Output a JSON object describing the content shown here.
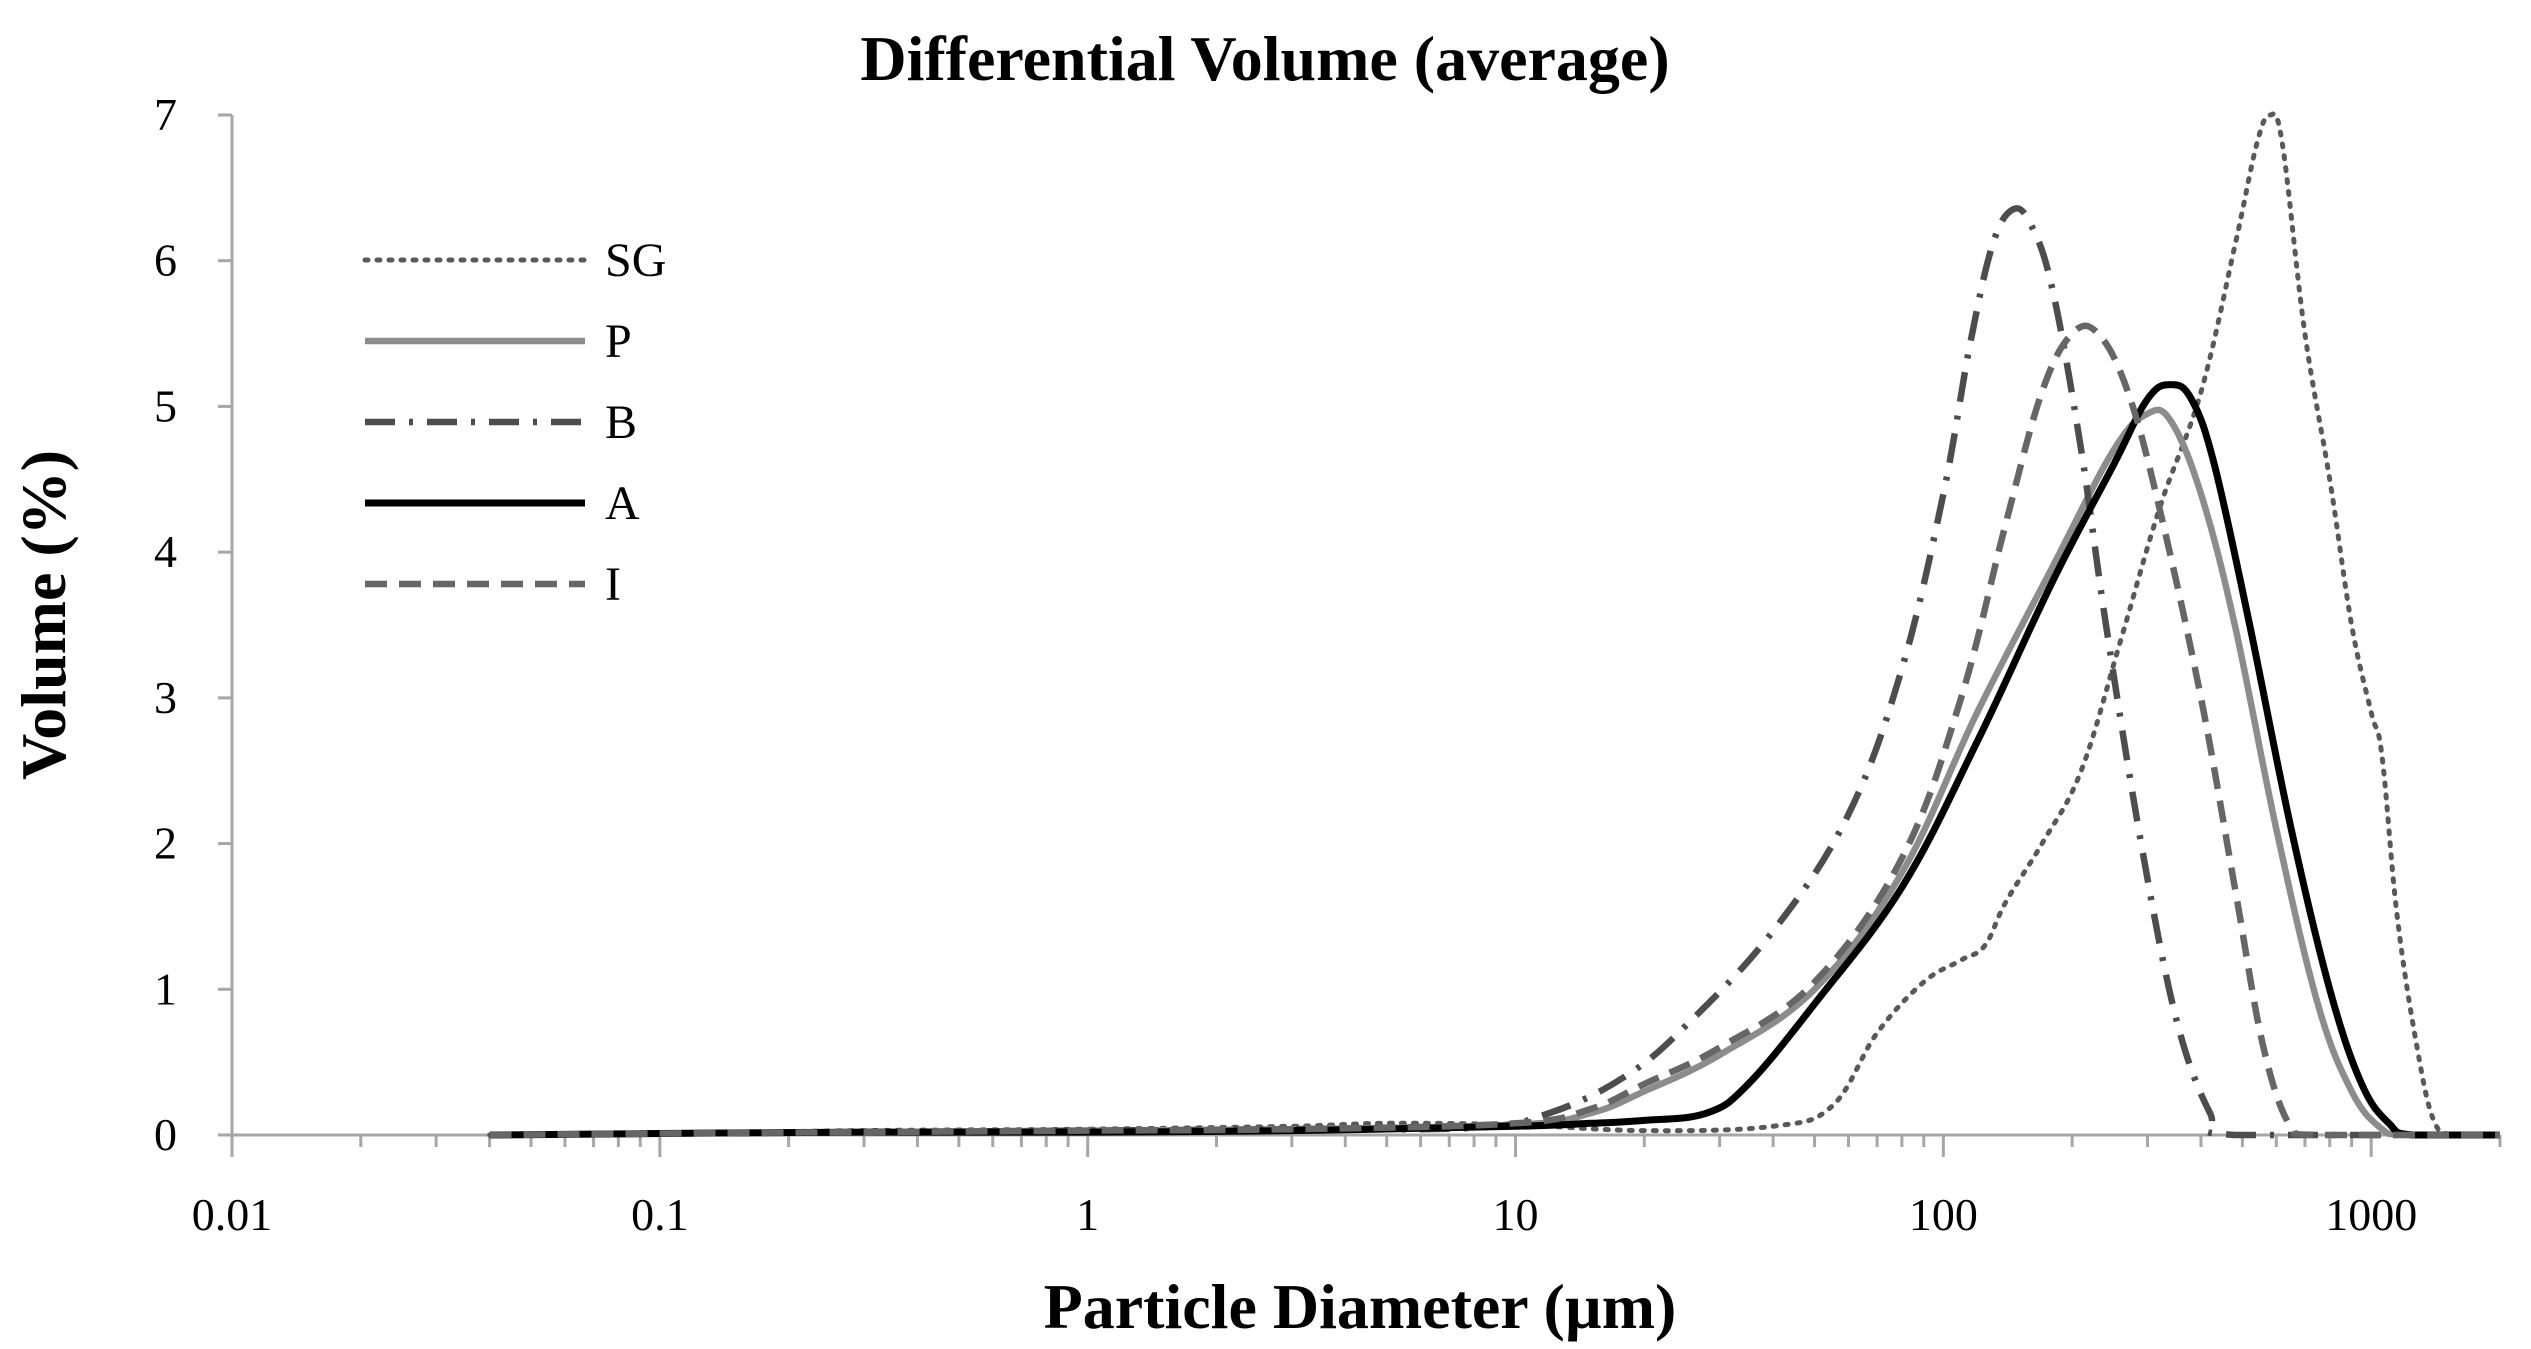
{
  "chart_data": {
    "type": "line",
    "title": "Differential Volume (average)",
    "xlabel": "Particle Diameter (µm)",
    "ylabel": "Volume (%)",
    "xscale": "log",
    "xlim": [
      0.01,
      2000
    ],
    "ylim": [
      0,
      7
    ],
    "x_ticks": [
      0.01,
      0.1,
      1,
      10,
      100,
      1000
    ],
    "x_tick_labels": [
      "0.01",
      "0.1",
      "1",
      "10",
      "100",
      "1000"
    ],
    "y_ticks": [
      0,
      1,
      2,
      3,
      4,
      5,
      6,
      7
    ],
    "y_tick_labels": [
      "0",
      "1",
      "2",
      "3",
      "4",
      "5",
      "6",
      "7"
    ],
    "legend_position": "top-left",
    "series": [
      {
        "name": "SG",
        "color": "#595959",
        "style": "dotted",
        "points": [
          [
            0.04,
            0
          ],
          [
            0.1,
            0.01
          ],
          [
            0.3,
            0.03
          ],
          [
            1,
            0.04
          ],
          [
            3,
            0.06
          ],
          [
            5,
            0.08
          ],
          [
            10,
            0.07
          ],
          [
            20,
            0.03
          ],
          [
            40,
            0.06
          ],
          [
            55,
            0.2
          ],
          [
            70,
            0.7
          ],
          [
            90,
            1.05
          ],
          [
            110,
            1.2
          ],
          [
            125,
            1.3
          ],
          [
            140,
            1.6
          ],
          [
            170,
            2.0
          ],
          [
            210,
            2.5
          ],
          [
            260,
            3.4
          ],
          [
            320,
            4.3
          ],
          [
            400,
            5.1
          ],
          [
            480,
            6.1
          ],
          [
            540,
            6.8
          ],
          [
            580,
            7.0
          ],
          [
            620,
            6.8
          ],
          [
            700,
            5.5
          ],
          [
            800,
            4.5
          ],
          [
            900,
            3.5
          ],
          [
            1000,
            2.9
          ],
          [
            1060,
            2.6
          ],
          [
            1150,
            1.5
          ],
          [
            1280,
            0.6
          ],
          [
            1400,
            0.1
          ],
          [
            1550,
            0
          ],
          [
            2000,
            0
          ]
        ]
      },
      {
        "name": "P",
        "color": "#8c8c8c",
        "style": "solid",
        "points": [
          [
            0.04,
            0
          ],
          [
            0.1,
            0.01
          ],
          [
            0.3,
            0.02
          ],
          [
            1,
            0.03
          ],
          [
            3,
            0.04
          ],
          [
            10,
            0.07
          ],
          [
            15,
            0.15
          ],
          [
            20,
            0.3
          ],
          [
            30,
            0.55
          ],
          [
            50,
            1.0
          ],
          [
            80,
            1.8
          ],
          [
            120,
            2.9
          ],
          [
            180,
            3.9
          ],
          [
            250,
            4.7
          ],
          [
            300,
            4.95
          ],
          [
            340,
            4.9
          ],
          [
            400,
            4.4
          ],
          [
            480,
            3.5
          ],
          [
            600,
            2.1
          ],
          [
            750,
            0.9
          ],
          [
            900,
            0.3
          ],
          [
            1050,
            0.05
          ],
          [
            1200,
            0
          ],
          [
            2000,
            0
          ]
        ]
      },
      {
        "name": "B",
        "color": "#4d4d4d",
        "style": "dashdot",
        "points": [
          [
            0.04,
            0
          ],
          [
            0.1,
            0.01
          ],
          [
            0.3,
            0.02
          ],
          [
            1,
            0.03
          ],
          [
            3,
            0.04
          ],
          [
            8,
            0.05
          ],
          [
            12,
            0.15
          ],
          [
            18,
            0.4
          ],
          [
            25,
            0.75
          ],
          [
            40,
            1.4
          ],
          [
            60,
            2.2
          ],
          [
            80,
            3.2
          ],
          [
            100,
            4.4
          ],
          [
            115,
            5.4
          ],
          [
            130,
            6.1
          ],
          [
            145,
            6.35
          ],
          [
            160,
            6.25
          ],
          [
            180,
            5.8
          ],
          [
            210,
            4.7
          ],
          [
            240,
            3.5
          ],
          [
            290,
            2.0
          ],
          [
            350,
            0.8
          ],
          [
            420,
            0.15
          ],
          [
            480,
            0
          ],
          [
            2000,
            0
          ]
        ]
      },
      {
        "name": "A",
        "color": "#000000",
        "style": "solid",
        "points": [
          [
            0.04,
            0
          ],
          [
            0.1,
            0.01
          ],
          [
            0.3,
            0.02
          ],
          [
            1,
            0.02
          ],
          [
            3,
            0.03
          ],
          [
            10,
            0.06
          ],
          [
            15,
            0.08
          ],
          [
            20,
            0.1
          ],
          [
            28,
            0.15
          ],
          [
            35,
            0.35
          ],
          [
            50,
            0.9
          ],
          [
            80,
            1.7
          ],
          [
            120,
            2.7
          ],
          [
            180,
            3.8
          ],
          [
            250,
            4.6
          ],
          [
            300,
            5.05
          ],
          [
            340,
            5.15
          ],
          [
            380,
            5.05
          ],
          [
            430,
            4.6
          ],
          [
            520,
            3.5
          ],
          [
            650,
            2.1
          ],
          [
            800,
            1.0
          ],
          [
            950,
            0.35
          ],
          [
            1100,
            0.08
          ],
          [
            1250,
            0
          ],
          [
            2000,
            0
          ]
        ]
      },
      {
        "name": "I",
        "color": "#666666",
        "style": "dashed",
        "points": [
          [
            0.04,
            0
          ],
          [
            0.1,
            0.01
          ],
          [
            0.3,
            0.02
          ],
          [
            1,
            0.03
          ],
          [
            3,
            0.04
          ],
          [
            10,
            0.08
          ],
          [
            15,
            0.18
          ],
          [
            20,
            0.35
          ],
          [
            30,
            0.6
          ],
          [
            50,
            1.05
          ],
          [
            80,
            1.9
          ],
          [
            110,
            3.0
          ],
          [
            140,
            4.2
          ],
          [
            170,
            5.1
          ],
          [
            200,
            5.5
          ],
          [
            230,
            5.5
          ],
          [
            270,
            5.1
          ],
          [
            320,
            4.3
          ],
          [
            400,
            3.0
          ],
          [
            480,
            1.7
          ],
          [
            560,
            0.6
          ],
          [
            650,
            0.05
          ],
          [
            750,
            0
          ],
          [
            2000,
            0
          ]
        ]
      }
    ]
  }
}
